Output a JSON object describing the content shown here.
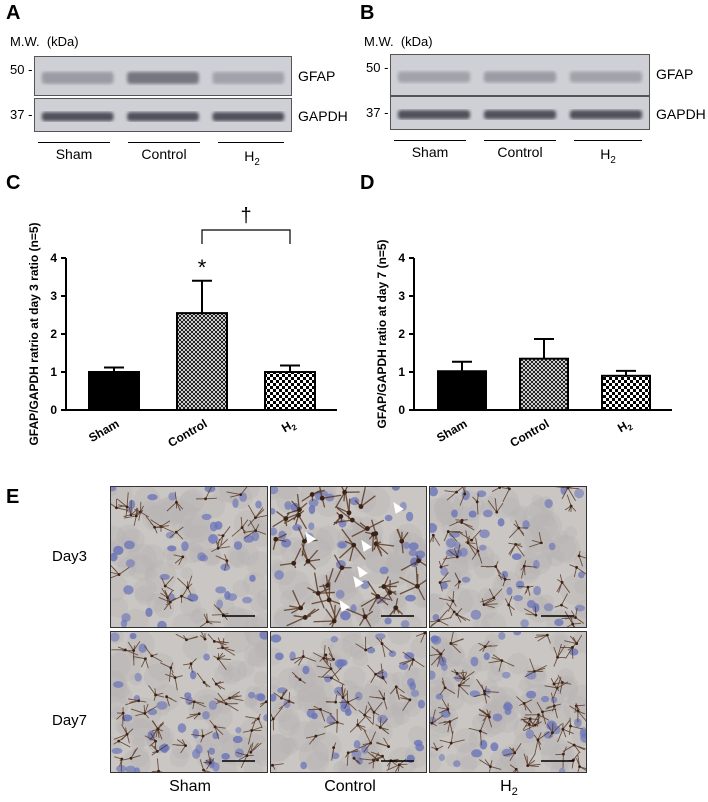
{
  "panels": {
    "A": {
      "letter": "A",
      "mw_label": "M.W.",
      "mw_unit": "(kDa)",
      "ticks": [
        "50 -",
        "37 -"
      ],
      "bands": [
        "GFAP",
        "GAPDH"
      ],
      "lanes": [
        "Sham",
        "Control",
        "H2"
      ],
      "band_intensity": {
        "GFAP": [
          0.35,
          0.6,
          0.3
        ],
        "GAPDH": [
          0.85,
          0.85,
          0.85
        ]
      }
    },
    "B": {
      "letter": "B",
      "mw_label": "M.W.",
      "mw_unit": "(kDa)",
      "ticks": [
        "50 -",
        "37 -"
      ],
      "bands": [
        "GFAP",
        "GAPDH"
      ],
      "lanes": [
        "Sham",
        "Control",
        "H2"
      ],
      "band_intensity": {
        "GFAP": [
          0.3,
          0.35,
          0.3
        ],
        "GAPDH": [
          0.85,
          0.85,
          0.85
        ]
      }
    },
    "C": {
      "letter": "C"
    },
    "D": {
      "letter": "D"
    },
    "E": {
      "letter": "E",
      "rows": [
        "Day3",
        "Day7"
      ],
      "columns": [
        "Sham",
        "Control",
        "H2"
      ],
      "arrowheads_day3_control": 6
    }
  },
  "colors": {
    "sham_bar": "#000000",
    "blot_bg": "#cfd0d6",
    "band": "#3a3a46",
    "tissue": "#c9c6c4",
    "nuclei": "#6a74b8",
    "stain": "#5b3a26"
  },
  "chart_data": [
    {
      "type": "bar",
      "panel": "C",
      "categories": [
        "Sham",
        "Control",
        "H2"
      ],
      "values": [
        1.0,
        2.55,
        1.0
      ],
      "errors": [
        0.12,
        0.85,
        0.17
      ],
      "fills": [
        "solid",
        "crosshatch",
        "checker"
      ],
      "ylabel": "GFAP/GAPDH ratrio at day 3 ratio (n=5)",
      "ylim": [
        0,
        4
      ],
      "yticks": [
        "0",
        "1",
        "2",
        "3",
        "4"
      ],
      "annotations": {
        "star": "*",
        "dagger": "†"
      }
    },
    {
      "type": "bar",
      "panel": "D",
      "categories": [
        "Sham",
        "Control",
        "H2"
      ],
      "values": [
        1.02,
        1.35,
        0.9
      ],
      "errors": [
        0.25,
        0.52,
        0.13
      ],
      "fills": [
        "solid",
        "crosshatch",
        "checker"
      ],
      "ylabel": "GFAP/GAPDH ratio at day 7 (n=5)",
      "ylim": [
        0,
        4
      ],
      "yticks": [
        "0",
        "1",
        "2",
        "3",
        "4"
      ]
    }
  ]
}
